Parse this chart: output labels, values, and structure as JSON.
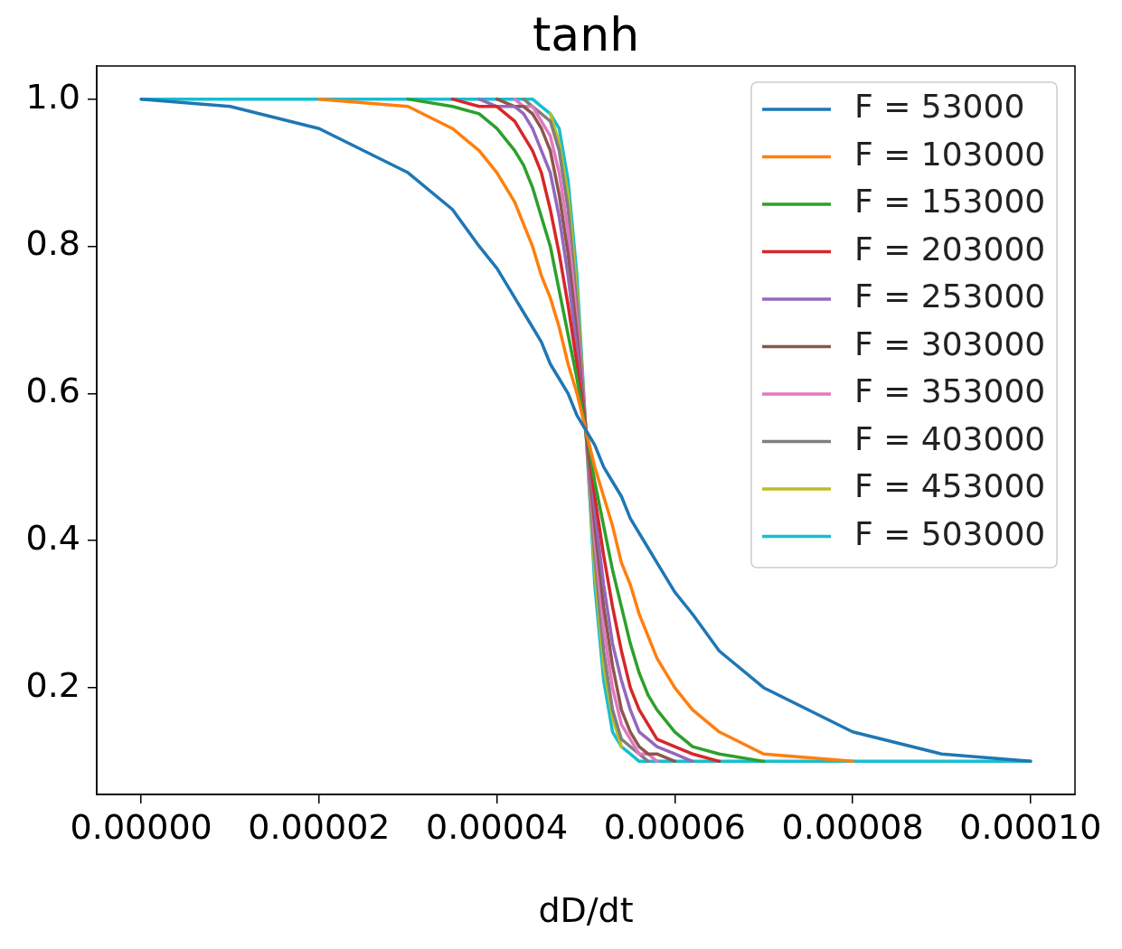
{
  "chart_data": {
    "type": "line",
    "title": "tanh",
    "xlabel": "dD/dt",
    "x": [
      0,
      1e-05,
      2e-05,
      3e-05,
      3.5e-05,
      3.8e-05,
      4e-05,
      4.2e-05,
      4.3e-05,
      4.4e-05,
      4.5e-05,
      4.6e-05,
      4.7e-05,
      4.8e-05,
      4.9e-05,
      5e-05,
      5.1e-05,
      5.2e-05,
      5.3e-05,
      5.4e-05,
      5.5e-05,
      5.6e-05,
      5.7e-05,
      5.8e-05,
      6e-05,
      6.2e-05,
      6.5e-05,
      7e-05,
      8e-05,
      9e-05,
      0.0001
    ],
    "xlim": [
      -5e-06,
      0.000105
    ],
    "xticks": [
      {
        "value": 0,
        "label": "0.00000"
      },
      {
        "value": 2e-05,
        "label": "0.00002"
      },
      {
        "value": 4e-05,
        "label": "0.00004"
      },
      {
        "value": 6e-05,
        "label": "0.00006"
      },
      {
        "value": 8e-05,
        "label": "0.00008"
      },
      {
        "value": 0.0001,
        "label": "0.00010"
      }
    ],
    "ylim": [
      0.055,
      1.045
    ],
    "yticks": [
      0.2,
      0.4,
      0.6,
      0.8,
      {
        "value": 1,
        "label": "1.0"
      }
    ],
    "grid": false,
    "legend": "top right",
    "line_style": "solid",
    "series": [
      {
        "name": "F = 53000",
        "color": "#1f77b4",
        "values": [
          1.0,
          0.99,
          0.96,
          0.9,
          0.85,
          0.8,
          0.77,
          0.73,
          0.71,
          0.69,
          0.67,
          0.64,
          0.62,
          0.6,
          0.57,
          0.55,
          0.53,
          0.5,
          0.48,
          0.46,
          0.43,
          0.41,
          0.39,
          0.37,
          0.33,
          0.3,
          0.25,
          0.2,
          0.14,
          0.11,
          0.1
        ]
      },
      {
        "name": "F = 103000",
        "color": "#ff7f0e",
        "values": [
          null,
          null,
          1.0,
          0.99,
          0.96,
          0.93,
          0.9,
          0.86,
          0.83,
          0.8,
          0.76,
          0.73,
          0.69,
          0.64,
          0.6,
          0.55,
          0.5,
          0.46,
          0.42,
          0.37,
          0.34,
          0.3,
          0.27,
          0.24,
          0.2,
          0.17,
          0.14,
          0.11,
          0.1,
          null,
          null
        ]
      },
      {
        "name": "F = 153000",
        "color": "#2ca02c",
        "values": [
          null,
          null,
          null,
          1.0,
          0.99,
          0.98,
          0.96,
          0.93,
          0.91,
          0.88,
          0.84,
          0.8,
          0.74,
          0.68,
          0.62,
          0.55,
          0.48,
          0.42,
          0.36,
          0.31,
          0.26,
          0.22,
          0.19,
          0.17,
          0.14,
          0.12,
          0.11,
          0.1,
          null,
          null,
          null
        ]
      },
      {
        "name": "F = 203000",
        "color": "#d62728",
        "values": [
          null,
          null,
          null,
          null,
          1.0,
          0.99,
          0.99,
          0.97,
          0.95,
          0.93,
          0.9,
          0.85,
          0.79,
          0.72,
          0.64,
          0.55,
          0.46,
          0.38,
          0.31,
          0.25,
          0.2,
          0.17,
          0.15,
          0.13,
          0.12,
          0.11,
          0.1,
          null,
          null,
          null,
          null
        ]
      },
      {
        "name": "F = 253000",
        "color": "#9467bd",
        "values": [
          null,
          null,
          null,
          null,
          null,
          1.0,
          0.99,
          0.99,
          0.98,
          0.96,
          0.93,
          0.9,
          0.84,
          0.76,
          0.66,
          0.55,
          0.44,
          0.34,
          0.26,
          0.21,
          0.17,
          0.14,
          0.13,
          0.12,
          0.11,
          0.1,
          null,
          null,
          null,
          null,
          null
        ]
      },
      {
        "name": "F = 303000",
        "color": "#8c564b",
        "values": [
          null,
          null,
          null,
          null,
          null,
          null,
          1.0,
          0.99,
          0.99,
          0.98,
          0.96,
          0.93,
          0.87,
          0.79,
          0.68,
          0.55,
          0.42,
          0.31,
          0.23,
          0.17,
          0.14,
          0.12,
          0.11,
          0.11,
          0.1,
          null,
          null,
          null,
          null,
          null,
          null
        ]
      },
      {
        "name": "F = 353000",
        "color": "#e377c2",
        "values": [
          null,
          null,
          null,
          null,
          null,
          null,
          null,
          1.0,
          0.99,
          0.99,
          0.97,
          0.95,
          0.9,
          0.82,
          0.7,
          0.55,
          0.4,
          0.28,
          0.2,
          0.15,
          0.13,
          0.11,
          0.11,
          0.1,
          null,
          null,
          null,
          null,
          null,
          null,
          null
        ]
      },
      {
        "name": "F = 403000",
        "color": "#7f7f7f",
        "values": [
          null,
          null,
          null,
          null,
          null,
          null,
          null,
          null,
          1.0,
          0.99,
          0.98,
          0.97,
          0.93,
          0.85,
          0.72,
          0.55,
          0.38,
          0.25,
          0.17,
          0.13,
          0.12,
          0.11,
          0.1,
          null,
          null,
          null,
          null,
          null,
          null,
          null,
          null
        ]
      },
      {
        "name": "F = 453000",
        "color": "#bcbd22",
        "values": [
          null,
          null,
          null,
          null,
          null,
          null,
          null,
          null,
          null,
          null,
          null,
          0.98,
          0.94,
          0.87,
          0.74,
          0.55,
          0.36,
          0.23,
          0.16,
          0.12,
          null,
          null,
          null,
          null,
          null,
          null,
          null,
          null,
          null,
          null,
          null
        ]
      },
      {
        "name": "F = 503000",
        "color": "#17becf",
        "values": [
          1.0,
          1.0,
          1.0,
          1.0,
          1.0,
          1.0,
          1.0,
          1.0,
          1.0,
          1.0,
          0.99,
          0.98,
          0.96,
          0.89,
          0.76,
          0.55,
          0.34,
          0.21,
          0.14,
          0.12,
          0.11,
          0.1,
          0.1,
          0.1,
          0.1,
          0.1,
          0.1,
          0.1,
          0.1,
          0.1,
          0.1
        ]
      }
    ]
  }
}
